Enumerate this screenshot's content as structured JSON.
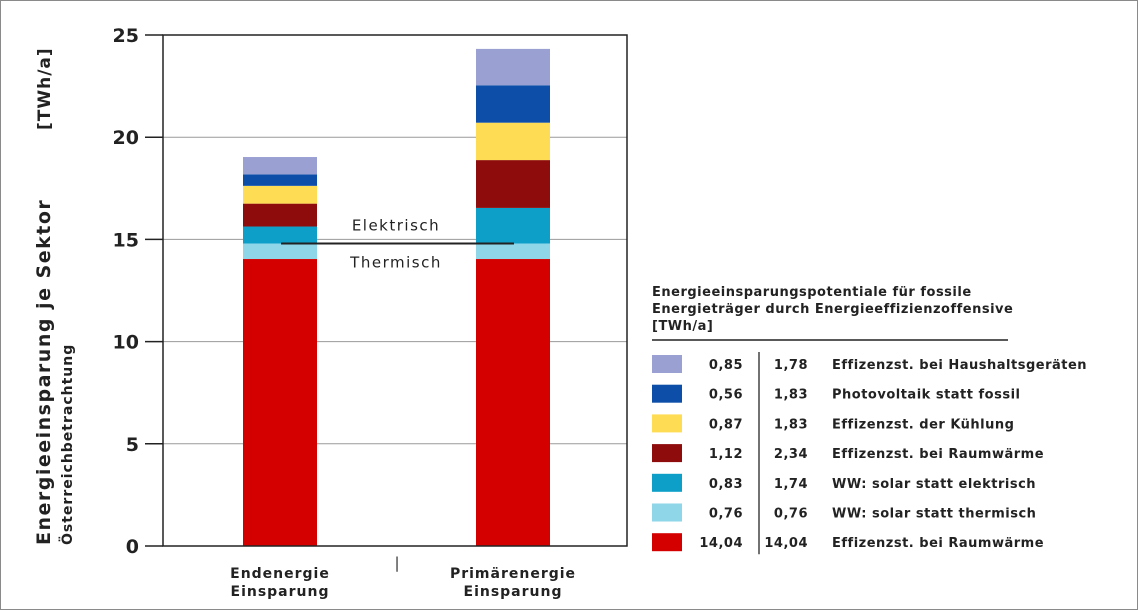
{
  "chart_data": {
    "type": "bar",
    "stacked": true,
    "ylabel": "Energieeinsparung je Sektor",
    "ylabel_sub": "Österreichbetrachtung",
    "unit_label": "[TWh/a]",
    "ylim": [
      0,
      25
    ],
    "yticks": [
      "0",
      "5",
      "10",
      "15",
      "20",
      "25"
    ],
    "ytick_values": [
      0,
      5,
      10,
      15,
      20,
      25
    ],
    "grid": true,
    "categories": [
      {
        "line1": "Endenergie",
        "line2": "Einsparung"
      },
      {
        "line1": "Primärenergie",
        "line2": "Einsparung"
      }
    ],
    "series": [
      {
        "name": "Effizenzst. bei Raumwärme",
        "color": "#d40000",
        "values": [
          14.04,
          14.04
        ],
        "labels": [
          "14,04",
          "14,04"
        ]
      },
      {
        "name": "WW: solar statt thermisch",
        "color": "#8ed6e8",
        "values": [
          0.76,
          0.76
        ],
        "labels": [
          "0,76",
          "0,76"
        ]
      },
      {
        "name": "WW: solar statt elektrisch",
        "color": "#0d9fc8",
        "values": [
          0.83,
          1.74
        ],
        "labels": [
          "0,83",
          "1,74"
        ]
      },
      {
        "name": "Effizenzst. bei Raumwärme",
        "color": "#8e0c0c",
        "values": [
          1.12,
          2.34
        ],
        "labels": [
          "1,12",
          "2,34"
        ]
      },
      {
        "name": "Effizenzst. der Kühlung",
        "color": "#fedd55",
        "values": [
          0.87,
          1.83
        ],
        "labels": [
          "0,87",
          "1,83"
        ]
      },
      {
        "name": "Photovoltaik statt fossil",
        "color": "#0d4fa8",
        "values": [
          0.56,
          1.83
        ],
        "labels": [
          "0,56",
          "1,83"
        ]
      },
      {
        "name": "Effizenzst. bei Haushaltsgeräten",
        "color": "#9aa0d2",
        "values": [
          0.85,
          1.78
        ],
        "labels": [
          "0,85",
          "1,78"
        ]
      }
    ],
    "annotations": {
      "divider_value": 14.8,
      "upper_label": "Elektrisch",
      "lower_label": "Thermisch",
      "separator": "|"
    },
    "legend": {
      "placement": "bottom-right",
      "title_lines": [
        "Energieeinsparungspotentiale für fossile",
        "Energieträger durch Energieeffizienzoffensive",
        "[TWh/a]"
      ]
    }
  }
}
